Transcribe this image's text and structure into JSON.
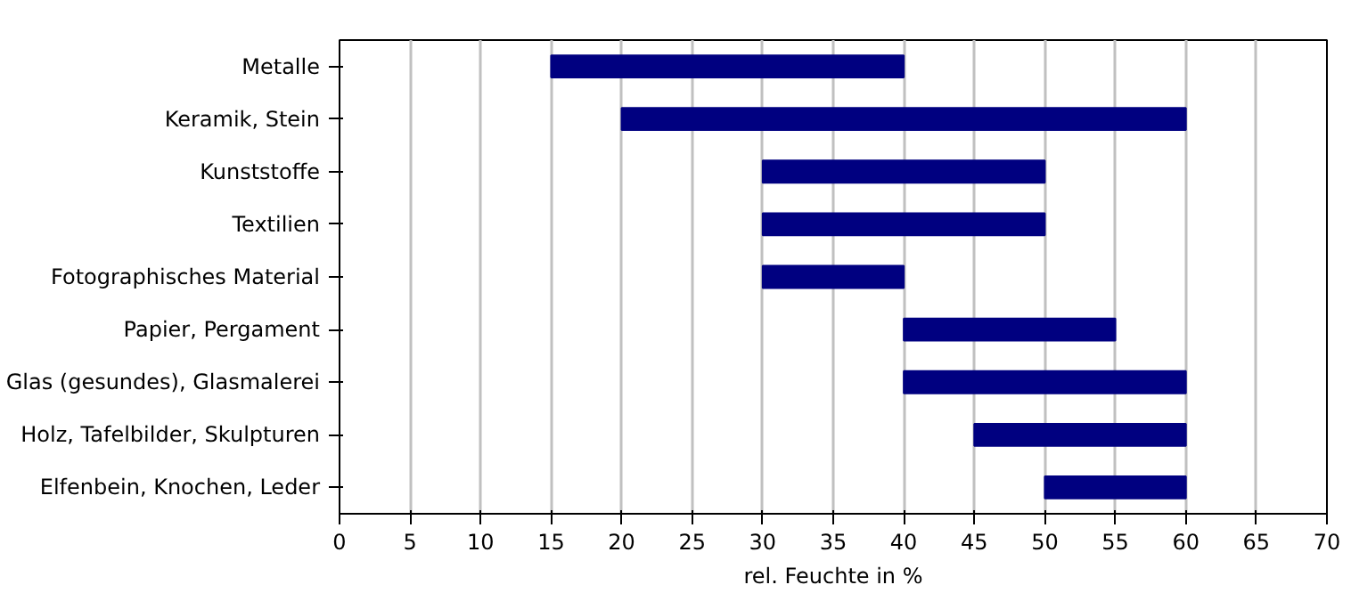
{
  "chart_data": {
    "type": "bar",
    "orientation": "horizontal",
    "xlabel": "rel. Feuchte in %",
    "categories": [
      "Metalle",
      "Keramik, Stein",
      "Kunststoffe",
      "Textilien",
      "Fotographisches Material",
      "Papier, Pergament",
      "Glas (gesundes), Glasmalerei",
      "Holz, Tafelbilder, Skulpturen",
      "Elfenbein, Knochen, Leder"
    ],
    "base": [
      15,
      20,
      30,
      30,
      30,
      40,
      40,
      45,
      50
    ],
    "values": [
      25,
      40,
      20,
      20,
      10,
      15,
      20,
      15,
      10
    ],
    "color": "#000080",
    "xlim": [
      0,
      70
    ],
    "xticks": [
      0,
      5,
      10,
      15,
      20,
      25,
      30,
      35,
      40,
      45,
      50,
      55,
      60,
      65,
      70
    ],
    "grid": "x"
  }
}
